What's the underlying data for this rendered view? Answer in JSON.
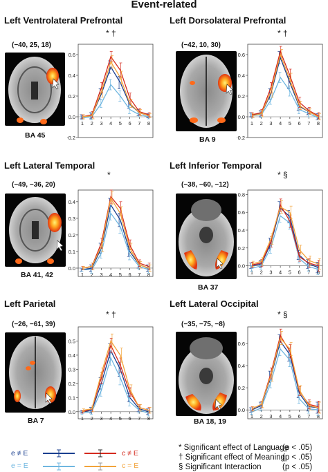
{
  "page": {
    "title": "Event-related"
  },
  "panels": [
    {
      "id": "lvp",
      "title": "Left Ventrolateral Prefrontal",
      "coords": "(−40, 25, 18)",
      "ba": "BA 45",
      "sig": "* †"
    },
    {
      "id": "ldp",
      "title": "Left Dorsolateral Prefrontal",
      "coords": "(−42, 10, 30)",
      "ba": "BA 9",
      "sig": "* †"
    },
    {
      "id": "llt",
      "title": "Left Lateral Temporal",
      "coords": "(−49, −36, 20)",
      "ba": "BA 41, 42",
      "sig": "*"
    },
    {
      "id": "lit",
      "title": "Left Inferior Temporal",
      "coords": "(−38, −60, −12)",
      "ba": "BA 37",
      "sig": "* §"
    },
    {
      "id": "lp",
      "title": "Left Parietal",
      "coords": "(−26, −61, 39)",
      "ba": "BA 7",
      "sig": "* †"
    },
    {
      "id": "llo",
      "title": "Left Lateral Occipital",
      "coords": "(−35, −75, −8)",
      "ba": "BA 18, 19",
      "sig": "* §"
    }
  ],
  "legend": {
    "items": [
      {
        "label": "e ≠ E",
        "color": "#1a3f8f"
      },
      {
        "label": "e = E",
        "color": "#6fb6e0"
      },
      {
        "label": "c ≠ E",
        "color": "#d42a1e"
      },
      {
        "label": "c = E",
        "color": "#f2a33a"
      }
    ],
    "notes": [
      {
        "text": "* Significant effect of Language",
        "p": "(p < .05)"
      },
      {
        "text": "† Significant effect of Meaning",
        "p": "(p < .05)"
      },
      {
        "text": "§ Significant Interaction",
        "p": "(p < .05)"
      }
    ]
  },
  "chart_data": [
    {
      "type": "line",
      "region": "Left Ventrolateral Prefrontal",
      "x": [
        1,
        2,
        3,
        4,
        5,
        6,
        7,
        8
      ],
      "xticks": [
        "1",
        "2",
        "3",
        "4",
        "5",
        "6",
        "7",
        "8"
      ],
      "yticks": [
        "−0.2",
        "0.0",
        "0.2",
        "0.4",
        "0.6"
      ],
      "ylim": [
        -0.2,
        0.7
      ],
      "series": [
        {
          "label": "e ≠ E",
          "color": "#1a3f8f",
          "values": [
            0.0,
            0.01,
            0.22,
            0.48,
            0.33,
            0.12,
            0.04,
            0.01
          ],
          "err": [
            0.02,
            0.03,
            0.05,
            0.06,
            0.06,
            0.04,
            0.03,
            0.02
          ]
        },
        {
          "label": "e = E",
          "color": "#6fb6e0",
          "values": [
            -0.01,
            0.0,
            0.13,
            0.31,
            0.2,
            0.07,
            0.02,
            0.0
          ],
          "err": [
            0.02,
            0.03,
            0.04,
            0.05,
            0.05,
            0.04,
            0.02,
            0.02
          ]
        },
        {
          "label": "c ≠ E",
          "color": "#d42a1e",
          "values": [
            0.0,
            0.02,
            0.28,
            0.58,
            0.45,
            0.18,
            0.05,
            0.02
          ],
          "err": [
            0.02,
            0.03,
            0.05,
            0.05,
            0.07,
            0.05,
            0.03,
            0.02
          ]
        },
        {
          "label": "c = E",
          "color": "#f2a33a",
          "values": [
            0.0,
            0.01,
            0.24,
            0.53,
            0.38,
            0.13,
            0.04,
            0.01
          ],
          "err": [
            0.02,
            0.03,
            0.05,
            0.06,
            0.06,
            0.04,
            0.03,
            0.02
          ]
        }
      ]
    },
    {
      "type": "line",
      "region": "Left Dorsolateral Prefrontal",
      "x": [
        1,
        2,
        3,
        4,
        5,
        6,
        7,
        8
      ],
      "xticks": [
        "1",
        "2",
        "3",
        "4",
        "5",
        "6",
        "7",
        "8"
      ],
      "yticks": [
        "−0.2",
        "0.0",
        "0.2",
        "0.4",
        "0.6"
      ],
      "ylim": [
        -0.2,
        0.7
      ],
      "series": [
        {
          "label": "e ≠ E",
          "color": "#1a3f8f",
          "values": [
            0.02,
            0.03,
            0.22,
            0.57,
            0.33,
            0.1,
            0.05,
            0.0
          ],
          "err": [
            0.02,
            0.03,
            0.05,
            0.06,
            0.06,
            0.04,
            0.03,
            0.03
          ]
        },
        {
          "label": "e = E",
          "color": "#6fb6e0",
          "values": [
            0.01,
            0.02,
            0.16,
            0.38,
            0.25,
            0.07,
            0.03,
            -0.01
          ],
          "err": [
            0.02,
            0.03,
            0.04,
            0.05,
            0.05,
            0.04,
            0.03,
            0.02
          ]
        },
        {
          "label": "c ≠ E",
          "color": "#d42a1e",
          "values": [
            0.02,
            0.04,
            0.28,
            0.63,
            0.4,
            0.14,
            0.06,
            0.01
          ],
          "err": [
            0.02,
            0.03,
            0.05,
            0.05,
            0.06,
            0.05,
            0.03,
            0.03
          ]
        },
        {
          "label": "c = E",
          "color": "#f2a33a",
          "values": [
            0.01,
            0.03,
            0.24,
            0.6,
            0.36,
            0.11,
            0.05,
            0.0
          ],
          "err": [
            0.02,
            0.03,
            0.05,
            0.05,
            0.06,
            0.04,
            0.03,
            0.03
          ]
        }
      ]
    },
    {
      "type": "line",
      "region": "Left Lateral Temporal",
      "x": [
        1,
        2,
        3,
        4,
        5,
        6,
        7,
        8
      ],
      "xticks": [
        "1",
        "2",
        "3",
        "4",
        "5",
        "6",
        "7",
        "8"
      ],
      "yticks": [
        "0.0",
        "0.1",
        "0.2",
        "0.3",
        "0.4"
      ],
      "ylim": [
        -0.05,
        0.47
      ],
      "series": [
        {
          "label": "e ≠ E",
          "color": "#1a3f8f",
          "values": [
            -0.01,
            0.0,
            0.12,
            0.38,
            0.29,
            0.1,
            0.02,
            0.0
          ],
          "err": [
            0.01,
            0.02,
            0.03,
            0.04,
            0.04,
            0.03,
            0.02,
            0.02
          ]
        },
        {
          "label": "e = E",
          "color": "#6fb6e0",
          "values": [
            -0.01,
            -0.01,
            0.09,
            0.33,
            0.25,
            0.08,
            0.01,
            -0.01
          ],
          "err": [
            0.01,
            0.02,
            0.03,
            0.04,
            0.04,
            0.03,
            0.02,
            0.02
          ]
        },
        {
          "label": "c ≠ E",
          "color": "#d42a1e",
          "values": [
            0.0,
            0.01,
            0.15,
            0.43,
            0.36,
            0.14,
            0.03,
            0.01
          ],
          "err": [
            0.01,
            0.02,
            0.03,
            0.04,
            0.04,
            0.03,
            0.02,
            0.02
          ]
        },
        {
          "label": "c = E",
          "color": "#f2a33a",
          "values": [
            0.0,
            0.01,
            0.13,
            0.42,
            0.33,
            0.12,
            0.02,
            0.0
          ],
          "err": [
            0.01,
            0.02,
            0.03,
            0.04,
            0.04,
            0.03,
            0.02,
            0.02
          ]
        }
      ]
    },
    {
      "type": "line",
      "region": "Left Inferior Temporal",
      "x": [
        1,
        2,
        3,
        4,
        5,
        6,
        7,
        8
      ],
      "xticks": [
        "1",
        "2",
        "3",
        "4",
        "5",
        "6",
        "7",
        "8"
      ],
      "yticks": [
        "0.0",
        "0.2",
        "0.4",
        "0.6",
        "0.8"
      ],
      "ylim": [
        -0.12,
        0.85
      ],
      "series": [
        {
          "label": "e ≠ E",
          "color": "#1a3f8f",
          "values": [
            0.0,
            0.02,
            0.25,
            0.65,
            0.55,
            0.12,
            0.02,
            -0.02
          ],
          "err": [
            0.03,
            0.04,
            0.06,
            0.07,
            0.07,
            0.05,
            0.05,
            0.06
          ]
        },
        {
          "label": "e = E",
          "color": "#6fb6e0",
          "values": [
            -0.03,
            0.0,
            0.2,
            0.56,
            0.48,
            0.08,
            -0.01,
            -0.04
          ],
          "err": [
            0.03,
            0.04,
            0.06,
            0.07,
            0.07,
            0.05,
            0.05,
            0.06
          ]
        },
        {
          "label": "c ≠ E",
          "color": "#d42a1e",
          "values": [
            0.01,
            0.03,
            0.27,
            0.68,
            0.5,
            0.1,
            0.03,
            0.0
          ],
          "err": [
            0.03,
            0.04,
            0.06,
            0.07,
            0.07,
            0.05,
            0.05,
            0.06
          ]
        },
        {
          "label": "c = E",
          "color": "#f2a33a",
          "values": [
            0.02,
            0.05,
            0.3,
            0.66,
            0.6,
            0.18,
            0.06,
            0.02
          ],
          "err": [
            0.03,
            0.04,
            0.06,
            0.07,
            0.07,
            0.05,
            0.05,
            0.06
          ]
        }
      ]
    },
    {
      "type": "line",
      "region": "Left Parietal",
      "x": [
        1,
        2,
        3,
        4,
        5,
        6,
        7,
        8
      ],
      "xticks": [
        "1",
        "2",
        "3",
        "4",
        "5",
        "6",
        "7",
        "8"
      ],
      "yticks": [
        "0.0",
        "0.1",
        "0.2",
        "0.3",
        "0.4",
        "0.5"
      ],
      "ylim": [
        -0.05,
        0.6
      ],
      "series": [
        {
          "label": "e ≠ E",
          "color": "#1a3f8f",
          "values": [
            0.0,
            0.01,
            0.2,
            0.43,
            0.3,
            0.1,
            0.02,
            0.0
          ],
          "err": [
            0.01,
            0.02,
            0.04,
            0.05,
            0.05,
            0.03,
            0.02,
            0.02
          ]
        },
        {
          "label": "e = E",
          "color": "#6fb6e0",
          "values": [
            -0.01,
            0.0,
            0.15,
            0.38,
            0.24,
            0.07,
            0.01,
            -0.01
          ],
          "err": [
            0.01,
            0.02,
            0.04,
            0.05,
            0.05,
            0.03,
            0.02,
            0.02
          ]
        },
        {
          "label": "c ≠ E",
          "color": "#d42a1e",
          "values": [
            0.0,
            0.02,
            0.24,
            0.47,
            0.33,
            0.14,
            0.03,
            0.01
          ],
          "err": [
            0.01,
            0.02,
            0.04,
            0.05,
            0.05,
            0.03,
            0.02,
            0.02
          ]
        },
        {
          "label": "c = E",
          "color": "#f2a33a",
          "values": [
            0.01,
            0.02,
            0.27,
            0.5,
            0.4,
            0.16,
            0.03,
            0.01
          ],
          "err": [
            0.01,
            0.02,
            0.04,
            0.05,
            0.05,
            0.03,
            0.02,
            0.02
          ]
        }
      ]
    },
    {
      "type": "line",
      "region": "Left Lateral Occipital",
      "x": [
        1,
        2,
        3,
        4,
        5,
        6,
        7,
        8
      ],
      "xticks": [
        "1",
        "2",
        "3",
        "4",
        "5",
        "6",
        "7",
        "8"
      ],
      "yticks": [
        "0.0",
        "0.2",
        "0.4",
        "0.6"
      ],
      "ylim": [
        -0.08,
        0.75
      ],
      "series": [
        {
          "label": "e ≠ E",
          "color": "#1a3f8f",
          "values": [
            0.0,
            0.04,
            0.3,
            0.62,
            0.5,
            0.15,
            0.03,
            0.02
          ],
          "err": [
            0.02,
            0.03,
            0.05,
            0.06,
            0.06,
            0.04,
            0.04,
            0.05
          ]
        },
        {
          "label": "e = E",
          "color": "#6fb6e0",
          "values": [
            -0.02,
            0.02,
            0.25,
            0.55,
            0.45,
            0.1,
            0.01,
            0.0
          ],
          "err": [
            0.02,
            0.03,
            0.05,
            0.06,
            0.06,
            0.04,
            0.04,
            0.05
          ]
        },
        {
          "label": "c ≠ E",
          "color": "#d42a1e",
          "values": [
            0.01,
            0.05,
            0.33,
            0.67,
            0.53,
            0.17,
            0.05,
            0.03
          ],
          "err": [
            0.02,
            0.03,
            0.05,
            0.06,
            0.06,
            0.04,
            0.04,
            0.05
          ]
        },
        {
          "label": "c = E",
          "color": "#f2a33a",
          "values": [
            0.01,
            0.05,
            0.31,
            0.65,
            0.55,
            0.18,
            0.04,
            0.02
          ],
          "err": [
            0.02,
            0.03,
            0.05,
            0.06,
            0.06,
            0.04,
            0.04,
            0.05
          ]
        }
      ]
    }
  ]
}
